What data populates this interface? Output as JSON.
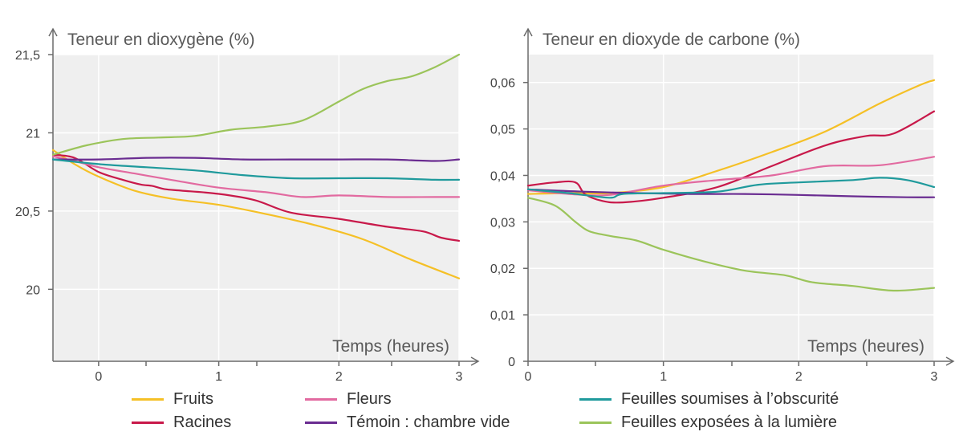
{
  "colors": {
    "fruits": "#f5c026",
    "racines": "#c8194a",
    "fleurs": "#e26aa0",
    "temoin": "#6a2c91",
    "obscurite": "#1f9a9c",
    "lumiere": "#9bc45a",
    "plot_bg": "#efefef",
    "grid": "#ffffff",
    "axis": "#6b6b6b"
  },
  "legend": [
    {
      "key": "fruits",
      "label": "Fruits"
    },
    {
      "key": "racines",
      "label": "Racines"
    },
    {
      "key": "fleurs",
      "label": "Fleurs"
    },
    {
      "key": "temoin",
      "label": "Témoin : chambre vide"
    },
    {
      "key": "obscurite",
      "label": "Feuilles soumises à l’obscurité"
    },
    {
      "key": "lumiere",
      "label": "Feuilles exposées à la lumière"
    }
  ],
  "chart_data": [
    {
      "type": "line",
      "title": "",
      "ylabel": "Teneur en dioxygène (%)",
      "xlabel": "Temps (heures)",
      "xlim": [
        -0.38,
        3
      ],
      "ylim": [
        19.54,
        21.5
      ],
      "xticks": [
        0,
        1,
        2,
        3
      ],
      "xtick_labels": [
        "0",
        "1",
        "2",
        "3"
      ],
      "yticks": [
        20,
        20.5,
        21,
        21.5
      ],
      "ytick_labels": [
        "20",
        "20,5",
        "21",
        "21,5"
      ],
      "grid": true,
      "series": [
        {
          "key": "fruits",
          "name": "Fruits",
          "x": [
            -0.38,
            -0.2,
            0,
            0.3,
            0.6,
            1,
            1.4,
            1.8,
            2.2,
            2.6,
            3
          ],
          "y": [
            20.89,
            20.8,
            20.72,
            20.63,
            20.58,
            20.54,
            20.48,
            20.41,
            20.32,
            20.19,
            20.07
          ]
        },
        {
          "key": "racines",
          "name": "Racines",
          "x": [
            -0.38,
            -0.2,
            0,
            0.2,
            0.35,
            0.45,
            0.55,
            0.7,
            1,
            1.3,
            1.6,
            2,
            2.4,
            2.7,
            2.85,
            3
          ],
          "y": [
            20.86,
            20.84,
            20.75,
            20.7,
            20.67,
            20.66,
            20.64,
            20.63,
            20.61,
            20.57,
            20.49,
            20.45,
            20.4,
            20.37,
            20.33,
            20.31
          ]
        },
        {
          "key": "fleurs",
          "name": "Fleurs",
          "x": [
            -0.38,
            -0.2,
            0,
            0.3,
            0.6,
            1,
            1.4,
            1.7,
            2,
            2.4,
            2.8,
            3
          ],
          "y": [
            20.85,
            20.82,
            20.78,
            20.74,
            20.7,
            20.65,
            20.62,
            20.59,
            20.6,
            20.59,
            20.59,
            20.59
          ]
        },
        {
          "key": "temoin",
          "name": "Témoin : chambre vide",
          "x": [
            -0.38,
            0,
            0.4,
            0.8,
            1.2,
            1.6,
            2,
            2.4,
            2.8,
            3
          ],
          "y": [
            20.83,
            20.83,
            20.84,
            20.84,
            20.83,
            20.83,
            20.83,
            20.83,
            20.82,
            20.83
          ]
        },
        {
          "key": "obscurite",
          "name": "Feuilles soumises à l’obscurité",
          "x": [
            -0.38,
            0,
            0.4,
            0.8,
            1.2,
            1.6,
            2,
            2.4,
            2.8,
            3
          ],
          "y": [
            20.83,
            20.8,
            20.78,
            20.76,
            20.73,
            20.71,
            20.71,
            20.71,
            20.7,
            20.7
          ]
        },
        {
          "key": "lumiere",
          "name": "Feuilles exposées à la lumière",
          "x": [
            -0.38,
            -0.1,
            0.2,
            0.5,
            0.8,
            1.1,
            1.4,
            1.7,
            2,
            2.2,
            2.4,
            2.6,
            2.8,
            3
          ],
          "y": [
            20.86,
            20.92,
            20.96,
            20.97,
            20.98,
            21.02,
            21.04,
            21.08,
            21.2,
            21.28,
            21.33,
            21.36,
            21.42,
            21.5
          ]
        }
      ]
    },
    {
      "type": "line",
      "title": "",
      "ylabel": "Teneur en dioxyde de carbone (%)",
      "xlabel": "Temps (heures)",
      "xlim": [
        0,
        3
      ],
      "ylim": [
        0,
        0.066
      ],
      "xticks": [
        0,
        1,
        2,
        3
      ],
      "xtick_labels": [
        "0",
        "1",
        "2",
        "3"
      ],
      "yticks": [
        0,
        0.01,
        0.02,
        0.03,
        0.04,
        0.05,
        0.06
      ],
      "ytick_labels": [
        "0",
        "0,01",
        "0,02",
        "0,03",
        "0,04",
        "0,05",
        "0,06"
      ],
      "grid": true,
      "series": [
        {
          "key": "fruits",
          "name": "Fruits",
          "x": [
            0,
            0.3,
            0.6,
            1,
            1.4,
            1.8,
            2.2,
            2.6,
            2.9,
            3
          ],
          "y": [
            0.036,
            0.0362,
            0.0362,
            0.0375,
            0.041,
            0.045,
            0.0495,
            0.0555,
            0.0595,
            0.0605
          ]
        },
        {
          "key": "racines",
          "name": "Racines",
          "x": [
            0,
            0.2,
            0.35,
            0.42,
            0.55,
            0.7,
            1,
            1.4,
            1.8,
            2.2,
            2.5,
            2.7,
            3
          ],
          "y": [
            0.0378,
            0.0385,
            0.0385,
            0.036,
            0.0345,
            0.0342,
            0.0352,
            0.0375,
            0.042,
            0.0465,
            0.0485,
            0.049,
            0.0538
          ]
        },
        {
          "key": "fleurs",
          "name": "Fleurs",
          "x": [
            0,
            0.3,
            0.6,
            1,
            1.4,
            1.8,
            2.2,
            2.6,
            3
          ],
          "y": [
            0.0368,
            0.036,
            0.0358,
            0.0378,
            0.039,
            0.04,
            0.042,
            0.0422,
            0.044
          ]
        },
        {
          "key": "temoin",
          "name": "Témoin : chambre vide",
          "x": [
            0,
            0.4,
            0.8,
            1.2,
            1.6,
            2,
            2.4,
            2.8,
            3
          ],
          "y": [
            0.037,
            0.0365,
            0.0362,
            0.036,
            0.036,
            0.0358,
            0.0355,
            0.0353,
            0.0353
          ]
        },
        {
          "key": "obscurite",
          "name": "Feuilles soumises à l’obscurité",
          "x": [
            0,
            0.3,
            0.6,
            0.7,
            1,
            1.4,
            1.7,
            2,
            2.4,
            2.6,
            2.8,
            3
          ],
          "y": [
            0.037,
            0.0362,
            0.0352,
            0.036,
            0.0362,
            0.0365,
            0.038,
            0.0385,
            0.039,
            0.0395,
            0.039,
            0.0375
          ]
        },
        {
          "key": "lumiere",
          "name": "Feuilles exposées à la lumière",
          "x": [
            0,
            0.2,
            0.35,
            0.45,
            0.6,
            0.8,
            1,
            1.3,
            1.6,
            1.9,
            2.1,
            2.4,
            2.7,
            3
          ],
          "y": [
            0.0352,
            0.0335,
            0.03,
            0.028,
            0.027,
            0.026,
            0.024,
            0.0215,
            0.0195,
            0.0185,
            0.017,
            0.0162,
            0.0152,
            0.0158
          ]
        }
      ]
    }
  ]
}
